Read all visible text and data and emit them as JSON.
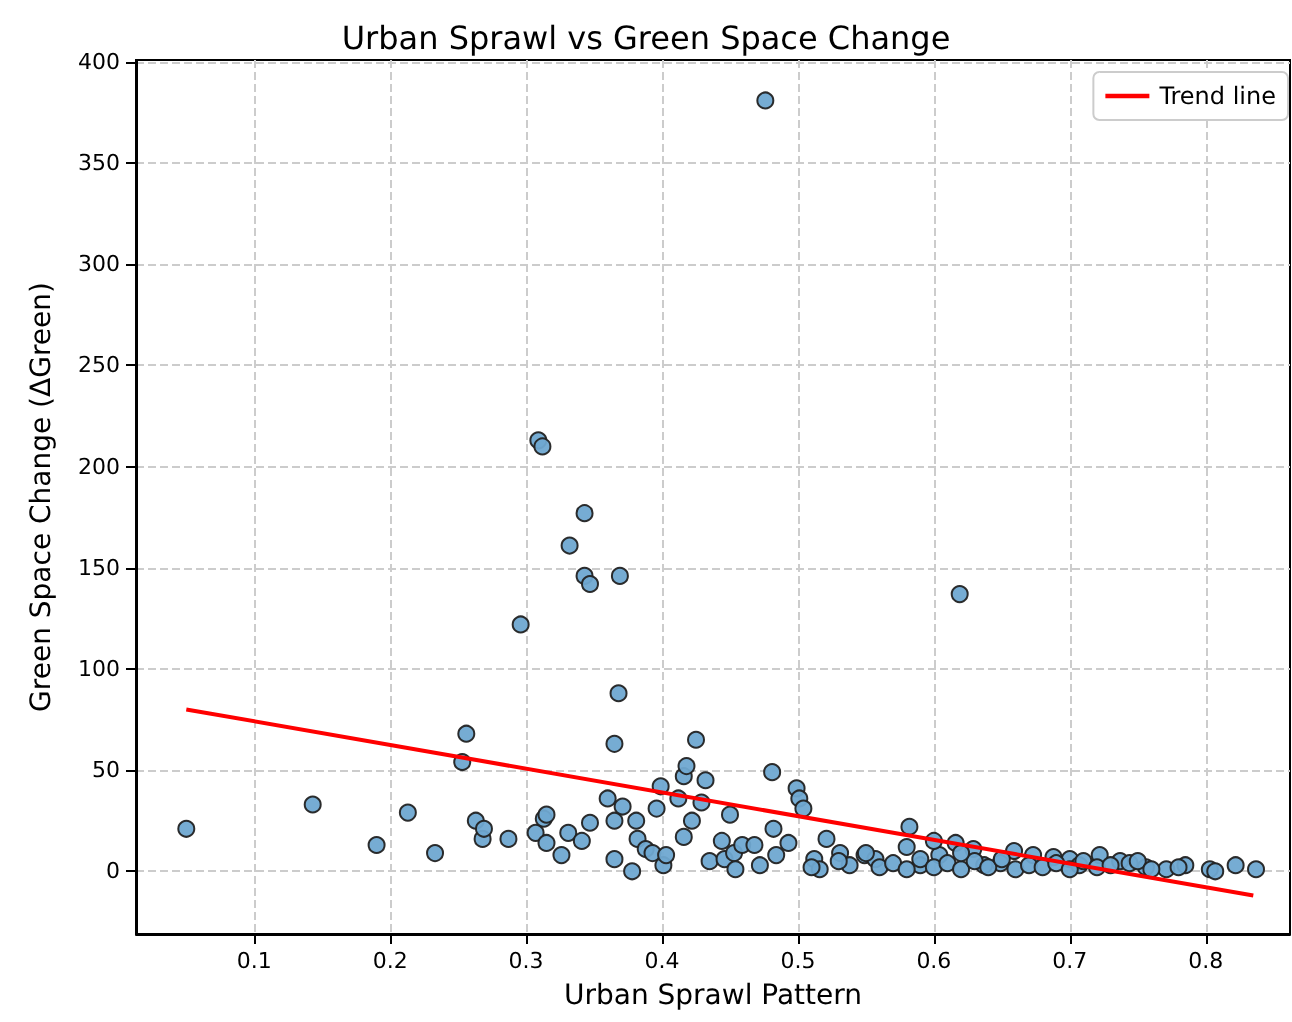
{
  "chart_data": {
    "type": "scatter",
    "title": "Urban Sprawl vs Green Space Change",
    "xlabel": "Urban Sprawl Pattern",
    "ylabel": "Green Space Change (ΔGreen)",
    "xlim": [
      0.013,
      0.862
    ],
    "ylim": [
      -31,
      401
    ],
    "xticks": [
      0.1,
      0.2,
      0.3,
      0.4,
      0.5,
      0.6,
      0.7,
      0.8
    ],
    "yticks": [
      0,
      50,
      100,
      150,
      200,
      250,
      300,
      350,
      400
    ],
    "grid": true,
    "legend": "top right",
    "marker": "circle",
    "series": [
      {
        "color": "#6fa8d1",
        "x": [
          0.05,
          0.143,
          0.19,
          0.213,
          0.233,
          0.256,
          0.253,
          0.263,
          0.268,
          0.287,
          0.296,
          0.309,
          0.312,
          0.343,
          0.332,
          0.343,
          0.347,
          0.369,
          0.368,
          0.365,
          0.476,
          0.619,
          0.269,
          0.307,
          0.313,
          0.315,
          0.315,
          0.326,
          0.331,
          0.341,
          0.347,
          0.36,
          0.365,
          0.365,
          0.371,
          0.378,
          0.381,
          0.382,
          0.388,
          0.393,
          0.396,
          0.399,
          0.401,
          0.403,
          0.412,
          0.416,
          0.418,
          0.416,
          0.422,
          0.425,
          0.429,
          0.432,
          0.435,
          0.444,
          0.446,
          0.45,
          0.453,
          0.454,
          0.459,
          0.468,
          0.472,
          0.481,
          0.482,
          0.484,
          0.493,
          0.499,
          0.501,
          0.504,
          0.512,
          0.516,
          0.521,
          0.531,
          0.538,
          0.549,
          0.557,
          0.55,
          0.582,
          0.59,
          0.604,
          0.616,
          0.629,
          0.637,
          0.649,
          0.659,
          0.673,
          0.688,
          0.7,
          0.707,
          0.722,
          0.737,
          0.744,
          0.756,
          0.771,
          0.785,
          0.803,
          0.807,
          0.822,
          0.837,
          0.51,
          0.53,
          0.56,
          0.57,
          0.58,
          0.59,
          0.6,
          0.61,
          0.62,
          0.63,
          0.64,
          0.65,
          0.66,
          0.67,
          0.68,
          0.69,
          0.7,
          0.71,
          0.72,
          0.73,
          0.75,
          0.76,
          0.78,
          0.58,
          0.6,
          0.62
        ],
        "values": [
          21,
          33,
          13,
          29,
          9,
          68,
          54,
          25,
          16,
          16,
          122,
          213,
          210,
          177,
          161,
          146,
          142,
          146,
          88,
          63,
          381,
          137,
          21,
          19,
          26,
          28,
          14,
          8,
          19,
          15,
          24,
          36,
          25,
          6,
          32,
          0,
          25,
          16,
          11,
          9,
          31,
          42,
          3,
          8,
          36,
          47,
          52,
          17,
          25,
          65,
          34,
          45,
          5,
          15,
          6,
          28,
          9,
          1,
          13,
          13,
          3,
          49,
          21,
          8,
          14,
          41,
          36,
          31,
          6,
          1,
          16,
          9,
          3,
          8,
          6,
          9,
          22,
          3,
          8,
          14,
          11,
          3,
          4,
          10,
          8,
          7,
          6,
          3,
          8,
          5,
          4,
          2,
          1,
          3,
          1,
          0,
          3,
          1,
          2,
          5,
          2,
          4,
          1,
          6,
          2,
          4,
          1,
          5,
          2,
          6,
          1,
          3,
          2,
          4,
          1,
          5,
          2,
          3,
          5,
          1,
          2,
          12,
          15,
          9
        ]
      },
      {
        "type": "line",
        "name": "Trend line",
        "color": "#ff0000",
        "marker": "none",
        "x": [
          0.05,
          0.835
        ],
        "values": [
          80,
          -12
        ]
      }
    ]
  }
}
